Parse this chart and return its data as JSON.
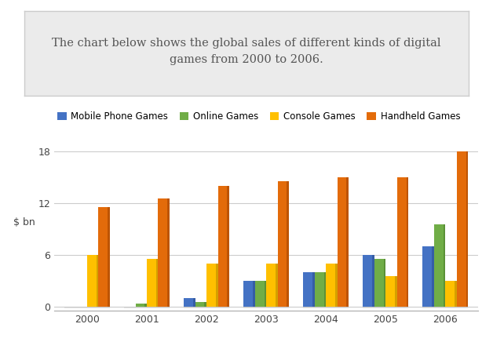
{
  "years": [
    "2000",
    "2001",
    "2002",
    "2003",
    "2004",
    "2005",
    "2006"
  ],
  "mobile_phone_games": [
    0.0,
    0.0,
    1.0,
    3.0,
    4.0,
    6.0,
    7.0
  ],
  "online_games": [
    0.0,
    0.3,
    0.5,
    3.0,
    4.0,
    5.5,
    9.5
  ],
  "console_games": [
    6.0,
    5.5,
    5.0,
    5.0,
    5.0,
    3.5,
    3.0
  ],
  "handheld_games": [
    11.5,
    12.5,
    14.0,
    14.5,
    15.0,
    15.0,
    18.0
  ],
  "colors": {
    "mobile": "#4472C4",
    "online": "#70AD47",
    "console": "#FFC000",
    "handheld": "#E36B0A"
  },
  "legend_labels": [
    "Mobile Phone Games",
    "Online Games",
    "Console Games",
    "Handheld Games"
  ],
  "ylabel": "$ bn",
  "yticks": [
    0,
    6,
    12,
    18
  ],
  "ylim": [
    0,
    20
  ],
  "title_line1": "The chart below shows the global sales of different kinds of digital",
  "title_line2": "games from 2000 to 2006.",
  "title_box_color": "#EBEBEB",
  "title_border_color": "#CCCCCC",
  "background_color": "#FFFFFF",
  "bar_width": 0.19
}
